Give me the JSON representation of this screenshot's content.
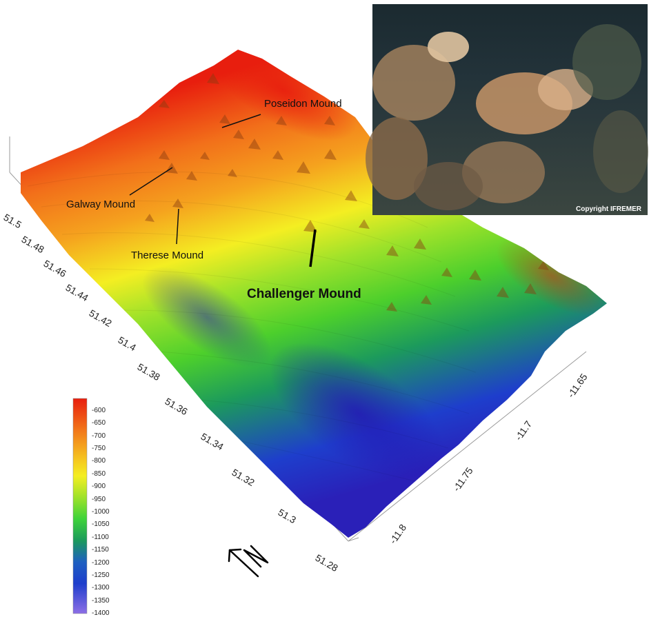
{
  "map": {
    "colors": {
      "shallow": "#e81e0e",
      "orange": "#f2781a",
      "yellow": "#f4ee22",
      "green": "#5cd92a",
      "teal": "#1c9a5c",
      "blue": "#1e3ecc",
      "deep": "#8d6fe6"
    }
  },
  "labels": {
    "poseidon": "Poseidon Mound",
    "galway": "Galway Mound",
    "therese": "Therese Mound",
    "challenger": "Challenger Mound"
  },
  "lat_ticks": [
    "51.5",
    "51.48",
    "51.46",
    "51.44",
    "51.42",
    "51.4",
    "51.38",
    "51.36",
    "51.34",
    "51.32",
    "51.3",
    "51.28"
  ],
  "lon_ticks": [
    "-11.8",
    "-11.75",
    "-11.7",
    "-11.65"
  ],
  "colorbar": {
    "values": [
      "-600",
      "-650",
      "-700",
      "-750",
      "-800",
      "-850",
      "-900",
      "-950",
      "-1000",
      "-1050",
      "-1100",
      "-1150",
      "-1200",
      "-1250",
      "-1300",
      "-1350",
      "-1400"
    ]
  },
  "photo": {
    "credit": "Copyright IFREMER"
  },
  "north_arrow": {
    "icon": "north-arrow-icon",
    "letter": "N"
  }
}
